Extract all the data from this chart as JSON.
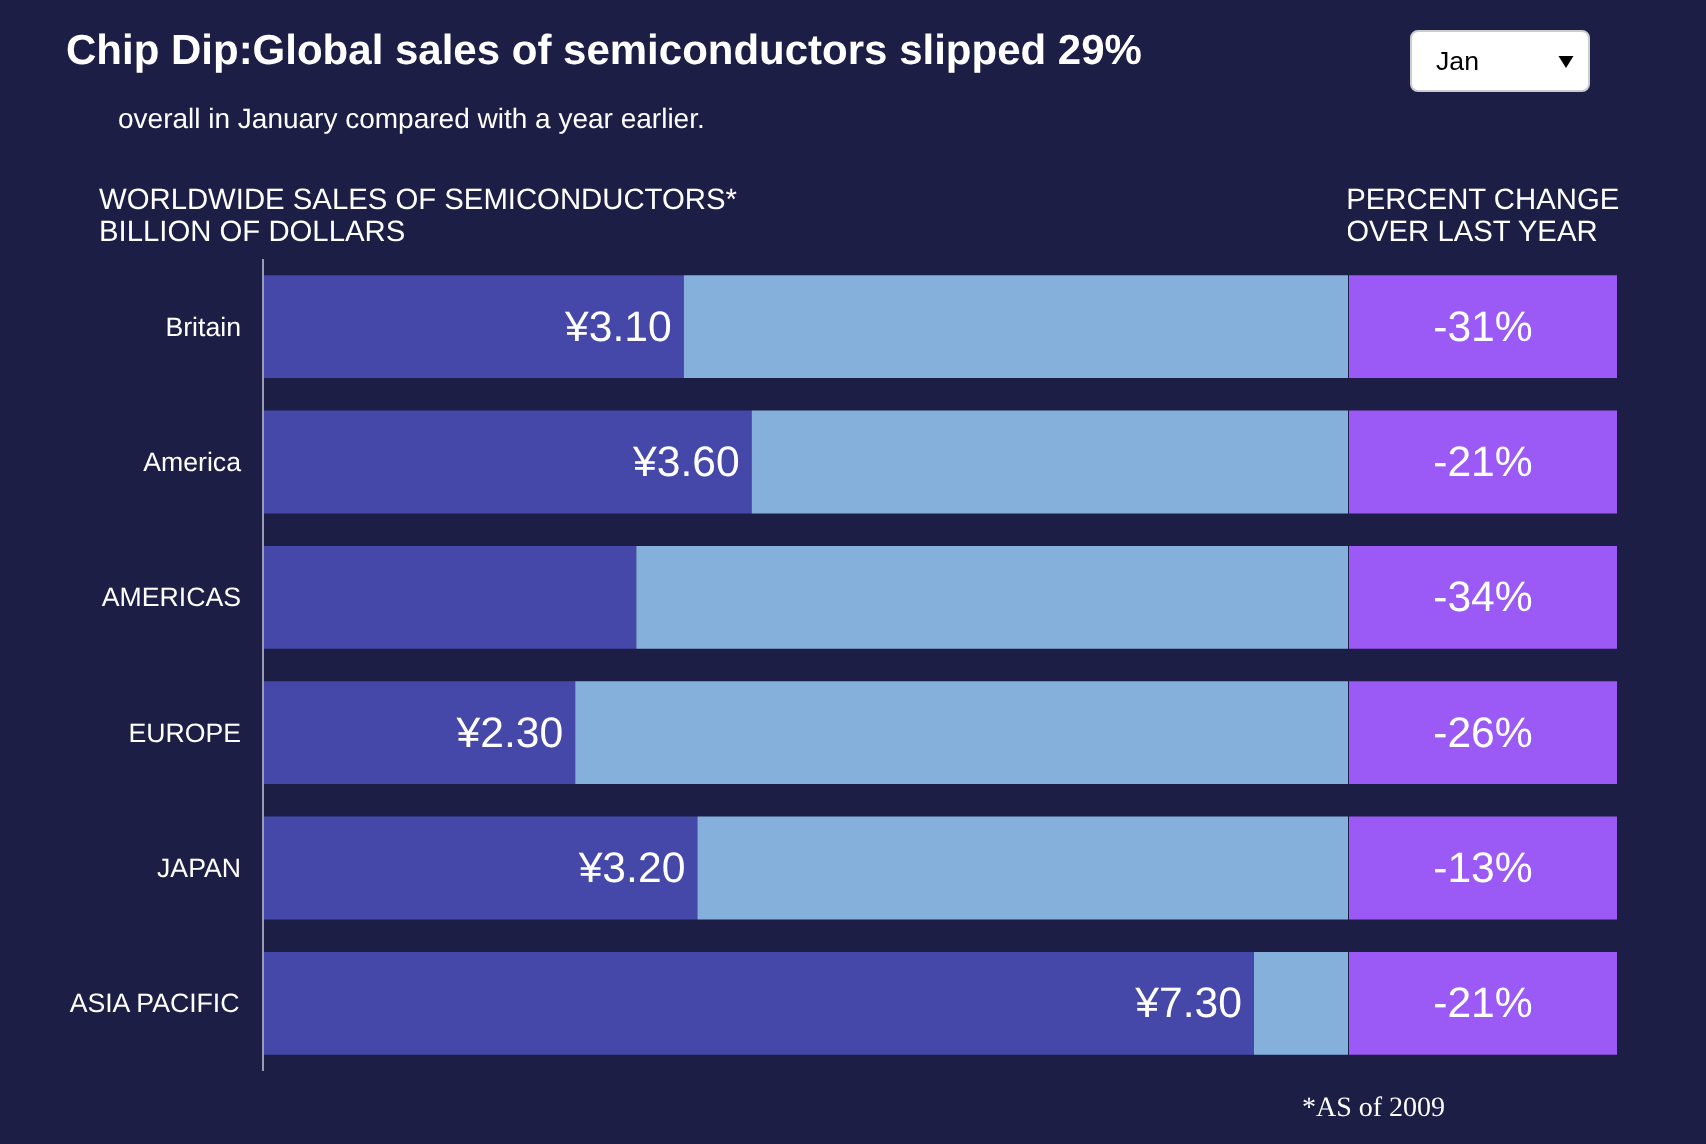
{
  "chart_data": [
    {
      "type": "bar",
      "orientation": "horizontal",
      "title": "Chip Dip:Global sales of semiconductors slipped 29%",
      "subtitle": "overall in January compared with a year earlier.",
      "xlabel": "WORLDWIDE SALES OF SEMICONDUCTORS*\nBILLION OF DOLLARS",
      "categories": [
        "Britain",
        "America",
        "AMERICAS",
        "EUROPE",
        "JAPAN",
        "ASIA PACIFIC"
      ],
      "xlim": [
        0,
        8
      ],
      "tick_labels": "y",
      "grid": false,
      "stacked": true,
      "series": [
        {
          "color": "#4548a8",
          "values": [
            3.1,
            3.6,
            2.75,
            2.3,
            3.2,
            7.3
          ],
          "value_labels": [
            "¥3.10",
            "¥3.60",
            null,
            "¥2.30",
            "¥3.20",
            "¥7.30"
          ]
        },
        {
          "color": "#84b0db",
          "values": [
            4.9,
            4.4,
            5.25,
            5.7,
            4.8,
            0.7
          ]
        }
      ],
      "annotations": [
        "Jan",
        "*AS of  2009"
      ]
    },
    {
      "type": "other",
      "title": "PERCENT CHANGE\nOVER LAST YEAR",
      "color": "#9b59f5",
      "annotations": [
        "-31%",
        "-21%",
        "-34%",
        "-26%",
        "-13%",
        "-21%"
      ]
    }
  ]
}
